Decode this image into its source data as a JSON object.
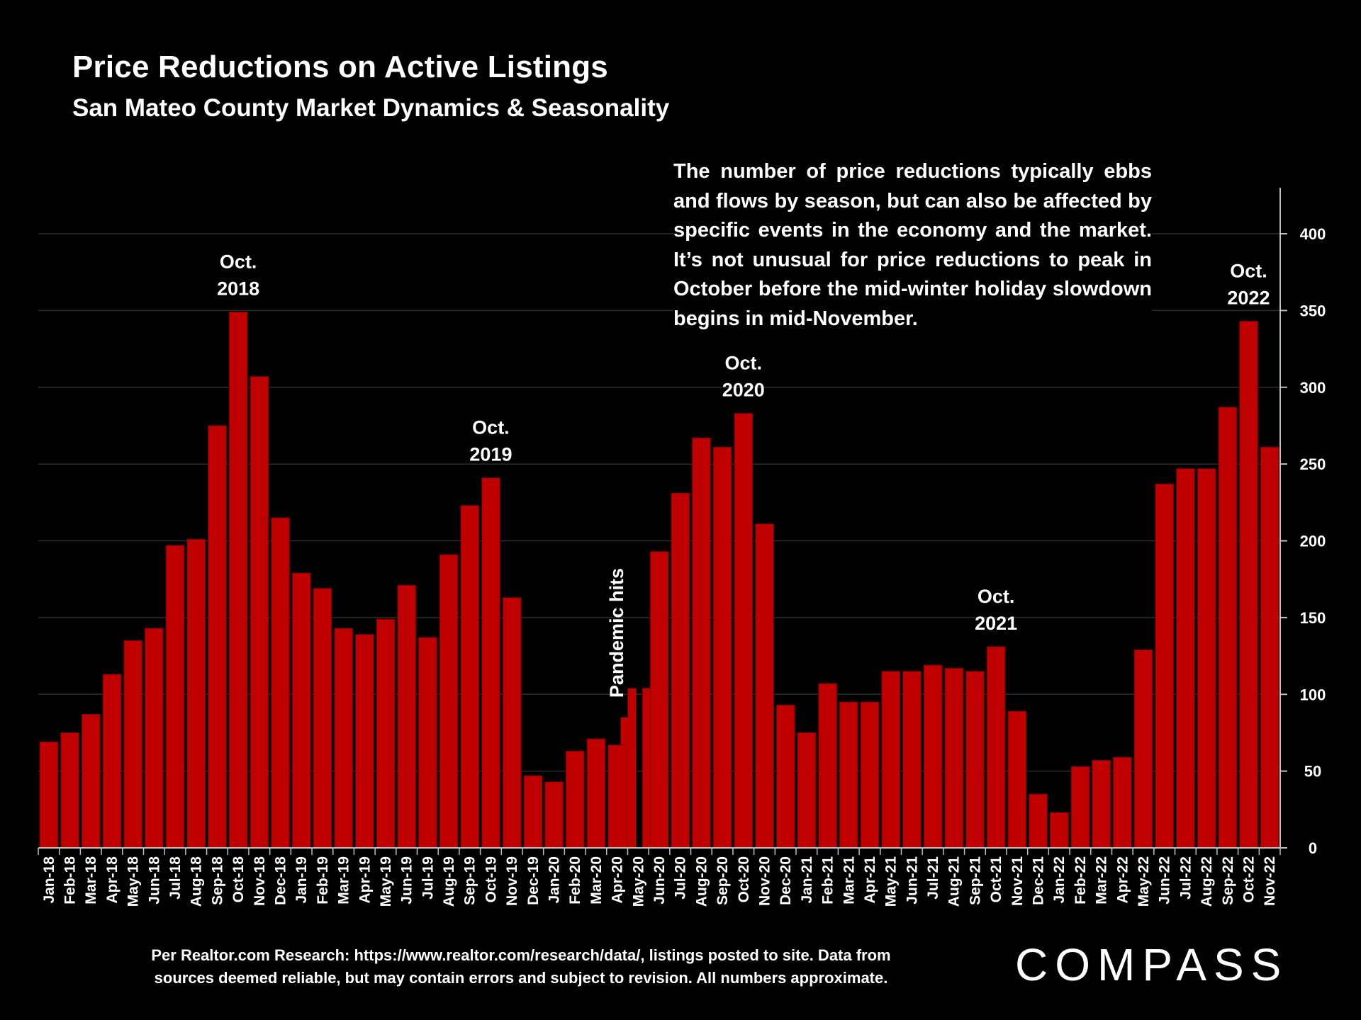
{
  "title": "Price Reductions on Active Listings",
  "subtitle": "San Mateo County Market Dynamics & Seasonality",
  "annotation": "The number of price reductions typically ebbs and flows by season, but can also be affected by specific events in the economy and the market. It’s not unusual for price reductions to peak in October before the mid-winter holiday slowdown begins in mid-November.",
  "footnote_line1": "Per Realtor.com Research:  https://www.realtor.com/research/data/, listings posted to site. Data from",
  "footnote_line2": "sources deemed reliable, but may contain errors and subject to revision. All numbers approximate.",
  "logo": "COMPASS",
  "colors": {
    "bar": "#c00000",
    "background": "#000000",
    "text": "#ffffff",
    "grid": "#2e2e2e"
  },
  "chart_data": {
    "type": "bar",
    "categories": [
      "Jan-18",
      "Feb-18",
      "Mar-18",
      "Apr-18",
      "May-18",
      "Jun-18",
      "Jul-18",
      "Aug-18",
      "Sep-18",
      "Oct-18",
      "Nov-18",
      "Dec-18",
      "Jan-19",
      "Feb-19",
      "Mar-19",
      "Apr-19",
      "May-19",
      "Jun-19",
      "Jul-19",
      "Aug-19",
      "Sep-19",
      "Oct-19",
      "Nov-19",
      "Dec-19",
      "Jan-20",
      "Feb-20",
      "Mar-20",
      "Apr-20",
      "May-20",
      "Jun-20",
      "Jul-20",
      "Aug-20",
      "Sep-20",
      "Oct-20",
      "Nov-20",
      "Dec-20",
      "Jan-21",
      "Feb-21",
      "Mar-21",
      "Apr-21",
      "May-21",
      "Jun-21",
      "Jul-21",
      "Aug-21",
      "Sep-21",
      "Oct-21",
      "Nov-21",
      "Dec-21",
      "Jan-22",
      "Feb-22",
      "Mar-22",
      "Apr-22",
      "May-22",
      "Jun-22",
      "Jul-22",
      "Aug-22",
      "Sep-22",
      "Oct-22",
      "Nov-22"
    ],
    "values": [
      69,
      75,
      87,
      113,
      135,
      143,
      197,
      201,
      275,
      349,
      307,
      215,
      179,
      169,
      143,
      139,
      149,
      171,
      137,
      191,
      223,
      241,
      163,
      47,
      43,
      63,
      71,
      67,
      104,
      193,
      231,
      267,
      261,
      283,
      211,
      93,
      75,
      107,
      95,
      95,
      115,
      115,
      119,
      117,
      115,
      131,
      89,
      35,
      23,
      53,
      57,
      59,
      129,
      237,
      247,
      247,
      287,
      343,
      261
    ],
    "april_2020_split": [
      85,
      104
    ],
    "ylim": [
      0,
      400
    ],
    "y_ticks": [
      0,
      50,
      100,
      150,
      200,
      250,
      300,
      350,
      400
    ],
    "y_axis_position": "right",
    "grid": true,
    "annotations": [
      {
        "line1": "Oct.",
        "line2": "2018",
        "category": "Oct-18"
      },
      {
        "line1": "Oct.",
        "line2": "2019",
        "category": "Oct-19"
      },
      {
        "line1": "Oct.",
        "line2": "2020",
        "category": "Oct-20"
      },
      {
        "line1": "Oct.",
        "line2": "2021",
        "category": "Oct-21"
      },
      {
        "line1": "Oct.",
        "line2": "2022",
        "category": "Oct-22"
      }
    ],
    "event_label": "Pandemic hits"
  }
}
